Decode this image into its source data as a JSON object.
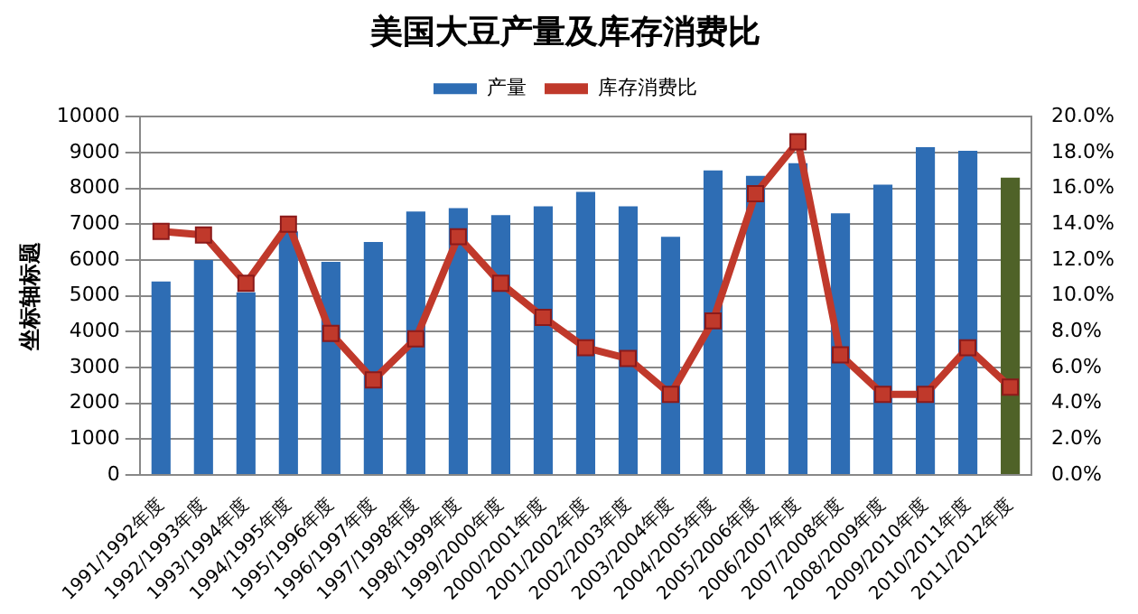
{
  "chart_data": {
    "type": "bar",
    "title": "美国大豆产量及库存消费比",
    "ylabel": "坐标轴标题",
    "categories": [
      "1991/1992年度",
      "1992/1993年度",
      "1993/1994年度",
      "1994/1995年度",
      "1995/1996年度",
      "1996/1997年度",
      "1997/1998年度",
      "1998/1999年度",
      "1999/2000年度",
      "2000/2001年度",
      "2001/2002年度",
      "2002/2003年度",
      "2003/2004年度",
      "2004/2005年度",
      "2005/2006年度",
      "2006/2007年度",
      "2007/2008年度",
      "2008/2009年度",
      "2009/2010年度",
      "2010/2011年度",
      "2011/2012年度"
    ],
    "series": [
      {
        "name": "产量",
        "color": "#2e6db4",
        "colors": [
          "#2e6db4",
          "#2e6db4",
          "#2e6db4",
          "#2e6db4",
          "#2e6db4",
          "#2e6db4",
          "#2e6db4",
          "#2e6db4",
          "#2e6db4",
          "#2e6db4",
          "#2e6db4",
          "#2e6db4",
          "#2e6db4",
          "#2e6db4",
          "#2e6db4",
          "#2e6db4",
          "#2e6db4",
          "#2e6db4",
          "#2e6db4",
          "#2e6db4",
          "#4f6228"
        ],
        "values": [
          5400,
          6000,
          5100,
          6800,
          5950,
          6500,
          7350,
          7450,
          7250,
          7500,
          7900,
          7500,
          6650,
          8500,
          8350,
          8700,
          7300,
          8100,
          9150,
          9050,
          8300
        ]
      },
      {
        "name": "库存消费比",
        "type": "line",
        "axis": "y2",
        "color": "#c0392b",
        "values": [
          13.6,
          13.4,
          10.7,
          14.0,
          7.9,
          5.3,
          7.6,
          13.3,
          10.7,
          8.8,
          7.1,
          6.5,
          4.5,
          8.6,
          15.7,
          18.6,
          6.7,
          4.5,
          4.5,
          7.1,
          4.9
        ]
      }
    ],
    "ylim": [
      0,
      10000
    ],
    "yticks": [
      0,
      1000,
      2000,
      3000,
      4000,
      5000,
      6000,
      7000,
      8000,
      9000,
      10000
    ],
    "y2lim": [
      0,
      20
    ],
    "y2ticks": [
      {
        "value": 0,
        "label": "0.0%"
      },
      {
        "value": 2,
        "label": "2.0%"
      },
      {
        "value": 4,
        "label": "4.0%"
      },
      {
        "value": 6,
        "label": "6.0%"
      },
      {
        "value": 8,
        "label": "8.0%"
      },
      {
        "value": 10,
        "label": "10.0%"
      },
      {
        "value": 12,
        "label": "12.0%"
      },
      {
        "value": 14,
        "label": "14.0%"
      },
      {
        "value": 16,
        "label": "16.0%"
      },
      {
        "value": 18,
        "label": "18.0%"
      },
      {
        "value": 20,
        "label": "20.0%"
      }
    ],
    "grid": "y",
    "legend": "top",
    "marker": "square"
  }
}
